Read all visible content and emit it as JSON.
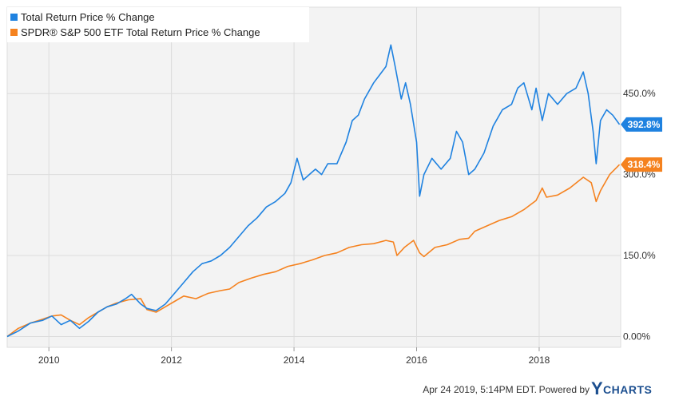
{
  "chart_data": {
    "type": "line",
    "x_ticks": [
      "2010",
      "2012",
      "2014",
      "2016",
      "2018"
    ],
    "y_ticks": [
      "0.00%",
      "150.0%",
      "300.0%",
      "450.0%"
    ],
    "ylim": [
      -20,
      610
    ],
    "series": [
      {
        "name": "Total Return Price % Change",
        "color": "#1f82e0",
        "end_label": "392.8%",
        "points": [
          [
            2009.32,
            0
          ],
          [
            2009.5,
            10
          ],
          [
            2009.7,
            25
          ],
          [
            2009.9,
            30
          ],
          [
            2010.05,
            38
          ],
          [
            2010.2,
            22
          ],
          [
            2010.35,
            30
          ],
          [
            2010.5,
            15
          ],
          [
            2010.65,
            28
          ],
          [
            2010.8,
            45
          ],
          [
            2010.95,
            55
          ],
          [
            2011.1,
            60
          ],
          [
            2011.25,
            70
          ],
          [
            2011.35,
            78
          ],
          [
            2011.5,
            60
          ],
          [
            2011.6,
            52
          ],
          [
            2011.75,
            48
          ],
          [
            2011.9,
            60
          ],
          [
            2012.05,
            80
          ],
          [
            2012.2,
            100
          ],
          [
            2012.35,
            120
          ],
          [
            2012.5,
            135
          ],
          [
            2012.65,
            140
          ],
          [
            2012.8,
            150
          ],
          [
            2012.95,
            165
          ],
          [
            2013.1,
            185
          ],
          [
            2013.25,
            205
          ],
          [
            2013.4,
            220
          ],
          [
            2013.55,
            240
          ],
          [
            2013.7,
            250
          ],
          [
            2013.85,
            265
          ],
          [
            2013.95,
            285
          ],
          [
            2014.05,
            330
          ],
          [
            2014.15,
            290
          ],
          [
            2014.25,
            300
          ],
          [
            2014.35,
            310
          ],
          [
            2014.45,
            300
          ],
          [
            2014.55,
            320
          ],
          [
            2014.7,
            320
          ],
          [
            2014.85,
            360
          ],
          [
            2014.95,
            400
          ],
          [
            2015.05,
            410
          ],
          [
            2015.15,
            440
          ],
          [
            2015.3,
            470
          ],
          [
            2015.4,
            485
          ],
          [
            2015.5,
            500
          ],
          [
            2015.58,
            540
          ],
          [
            2015.65,
            500
          ],
          [
            2015.75,
            440
          ],
          [
            2015.82,
            470
          ],
          [
            2015.9,
            430
          ],
          [
            2016.0,
            360
          ],
          [
            2016.05,
            260
          ],
          [
            2016.12,
            300
          ],
          [
            2016.25,
            330
          ],
          [
            2016.4,
            310
          ],
          [
            2016.55,
            330
          ],
          [
            2016.65,
            380
          ],
          [
            2016.75,
            360
          ],
          [
            2016.85,
            300
          ],
          [
            2016.95,
            310
          ],
          [
            2017.1,
            340
          ],
          [
            2017.25,
            390
          ],
          [
            2017.4,
            420
          ],
          [
            2017.55,
            430
          ],
          [
            2017.65,
            460
          ],
          [
            2017.75,
            470
          ],
          [
            2017.88,
            420
          ],
          [
            2017.95,
            460
          ],
          [
            2018.05,
            400
          ],
          [
            2018.15,
            450
          ],
          [
            2018.3,
            430
          ],
          [
            2018.45,
            450
          ],
          [
            2018.6,
            460
          ],
          [
            2018.72,
            490
          ],
          [
            2018.8,
            450
          ],
          [
            2018.88,
            380
          ],
          [
            2018.93,
            320
          ],
          [
            2019.0,
            400
          ],
          [
            2019.1,
            420
          ],
          [
            2019.2,
            410
          ],
          [
            2019.31,
            392.8
          ]
        ]
      },
      {
        "name": "SPDR® S&P 500 ETF Total Return Price % Change",
        "color": "#f5821f",
        "end_label": "318.4%",
        "points": [
          [
            2009.32,
            0
          ],
          [
            2009.5,
            15
          ],
          [
            2009.7,
            25
          ],
          [
            2009.9,
            32
          ],
          [
            2010.05,
            38
          ],
          [
            2010.2,
            40
          ],
          [
            2010.35,
            30
          ],
          [
            2010.5,
            22
          ],
          [
            2010.65,
            35
          ],
          [
            2010.8,
            45
          ],
          [
            2010.95,
            55
          ],
          [
            2011.1,
            62
          ],
          [
            2011.3,
            68
          ],
          [
            2011.5,
            70
          ],
          [
            2011.6,
            50
          ],
          [
            2011.75,
            45
          ],
          [
            2011.9,
            55
          ],
          [
            2012.05,
            65
          ],
          [
            2012.2,
            75
          ],
          [
            2012.4,
            70
          ],
          [
            2012.6,
            80
          ],
          [
            2012.8,
            85
          ],
          [
            2012.95,
            88
          ],
          [
            2013.1,
            100
          ],
          [
            2013.3,
            108
          ],
          [
            2013.5,
            115
          ],
          [
            2013.7,
            120
          ],
          [
            2013.9,
            130
          ],
          [
            2014.1,
            135
          ],
          [
            2014.3,
            142
          ],
          [
            2014.5,
            150
          ],
          [
            2014.7,
            155
          ],
          [
            2014.9,
            165
          ],
          [
            2015.1,
            170
          ],
          [
            2015.3,
            172
          ],
          [
            2015.5,
            178
          ],
          [
            2015.62,
            175
          ],
          [
            2015.68,
            150
          ],
          [
            2015.8,
            165
          ],
          [
            2015.95,
            178
          ],
          [
            2016.05,
            155
          ],
          [
            2016.12,
            148
          ],
          [
            2016.3,
            165
          ],
          [
            2016.5,
            170
          ],
          [
            2016.7,
            180
          ],
          [
            2016.85,
            182
          ],
          [
            2016.95,
            195
          ],
          [
            2017.15,
            205
          ],
          [
            2017.35,
            215
          ],
          [
            2017.55,
            222
          ],
          [
            2017.75,
            235
          ],
          [
            2017.95,
            252
          ],
          [
            2018.05,
            275
          ],
          [
            2018.12,
            258
          ],
          [
            2018.3,
            262
          ],
          [
            2018.5,
            275
          ],
          [
            2018.72,
            295
          ],
          [
            2018.85,
            285
          ],
          [
            2018.93,
            250
          ],
          [
            2019.0,
            270
          ],
          [
            2019.15,
            300
          ],
          [
            2019.31,
            318.4
          ]
        ]
      }
    ],
    "grid": true,
    "legend_position": "top-left",
    "background": "#f3f3f3"
  },
  "footer": {
    "timestamp": "Apr 24 2019, 5:14PM EDT.",
    "powered_by": "Powered by",
    "logo_text": "YCHARTS"
  }
}
